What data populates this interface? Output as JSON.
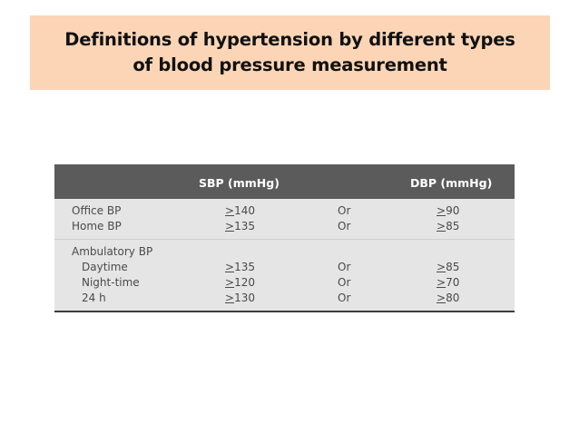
{
  "title": {
    "line1": "Definitions of hypertension by different types",
    "line2": "of blood pressure measurement"
  },
  "table": {
    "headers": {
      "label": "",
      "sbp": "SBP (mmHg)",
      "connector": "",
      "dbp": "DBP (mmHg)"
    },
    "ge_symbol": ">",
    "rows": [
      {
        "label": "Office BP",
        "sbp": "140",
        "connector": "Or",
        "dbp": "90"
      },
      {
        "label": "Home BP",
        "sbp": "135",
        "connector": "Or",
        "dbp": "85"
      },
      {
        "label": "Ambulatory BP",
        "sbp": "",
        "connector": "",
        "dbp": ""
      },
      {
        "label": "Daytime",
        "sbp": "135",
        "connector": "Or",
        "dbp": "85"
      },
      {
        "label": "Night-time",
        "sbp": "120",
        "connector": "Or",
        "dbp": "70"
      },
      {
        "label": "24 h",
        "sbp": "130",
        "connector": "Or",
        "dbp": "80"
      }
    ]
  },
  "colors": {
    "title_background": "#fbd5b5",
    "header_background": "#5b5b5b",
    "row_background": "#e5e5e5"
  }
}
